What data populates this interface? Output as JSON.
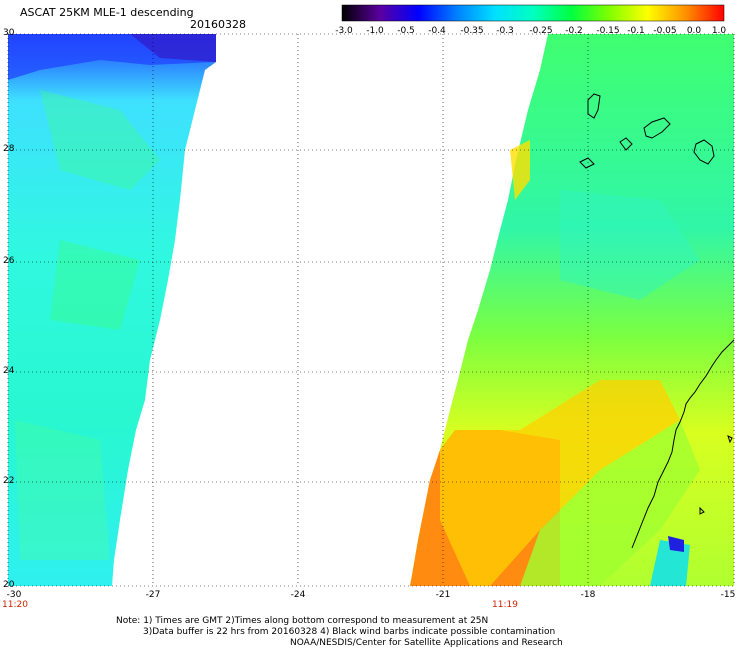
{
  "header": {
    "title": "ASCAT 25KM MLE-1 descending",
    "date": "20160328"
  },
  "colorbar": {
    "labels": [
      "-3.0",
      "-1.0",
      "-0.5",
      "-0.4",
      "-0.35",
      "-0.3",
      "-0.25",
      "-0.2",
      "-0.15",
      "-0.1",
      "-0.05",
      "0.0",
      "1.0"
    ],
    "colors": [
      "#000000",
      "#5a00a0",
      "#0000ff",
      "#0060ff",
      "#00b0ff",
      "#00ffff",
      "#00ff90",
      "#00ff00",
      "#90ff00",
      "#ffff00",
      "#ffb000",
      "#ff6000",
      "#ff0000"
    ]
  },
  "axes": {
    "lat_labels": [
      "30",
      "28",
      "26",
      "24",
      "22",
      "20"
    ],
    "lon_labels": [
      "-30",
      "-27",
      "-24",
      "-21",
      "-18",
      "-15"
    ],
    "times": [
      {
        "text": "11:20"
      },
      {
        "text": "11:19"
      }
    ]
  },
  "notes": {
    "line1": "Note: 1) Times are GMT 2)Times along bottom correspond to measurement at 25N",
    "line2": "3)Data buffer is 22 hrs from 20160328 4) Black wind barbs indicate possible contamination",
    "line3": "NOAA/NESDIS/Center for Satellite Applications and Research"
  }
}
